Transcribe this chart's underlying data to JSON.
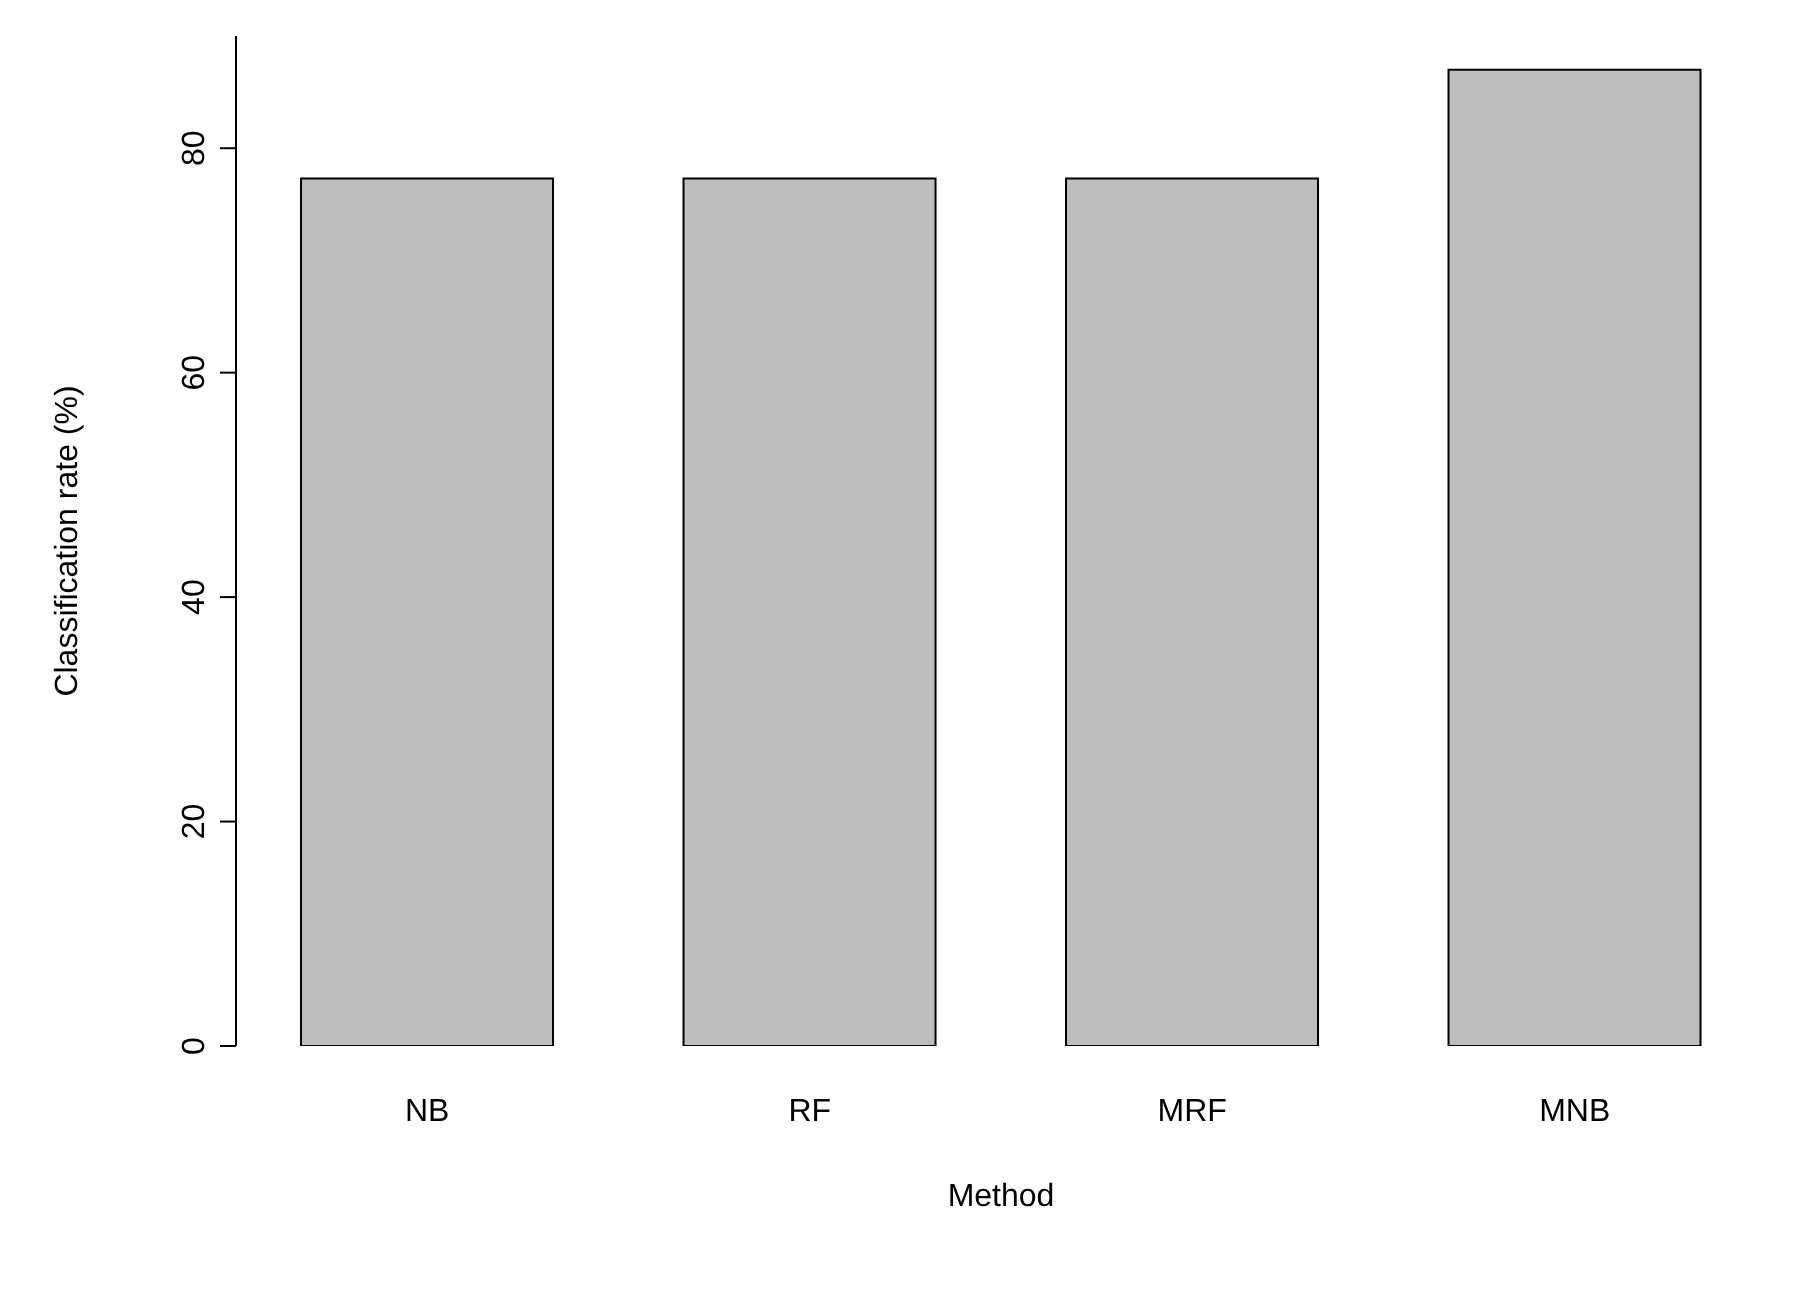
{
  "chart_data": {
    "type": "bar",
    "xlabel": "Method",
    "ylabel": "Classification rate (%)",
    "categories": [
      "NB",
      "RF",
      "MRF",
      "MNB"
    ],
    "values": [
      77.3,
      77.3,
      77.3,
      87
    ],
    "color": "#bebebe",
    "ylim": [
      0,
      90
    ],
    "yticks": [
      0,
      20,
      40,
      60,
      80
    ],
    "grid": false
  }
}
